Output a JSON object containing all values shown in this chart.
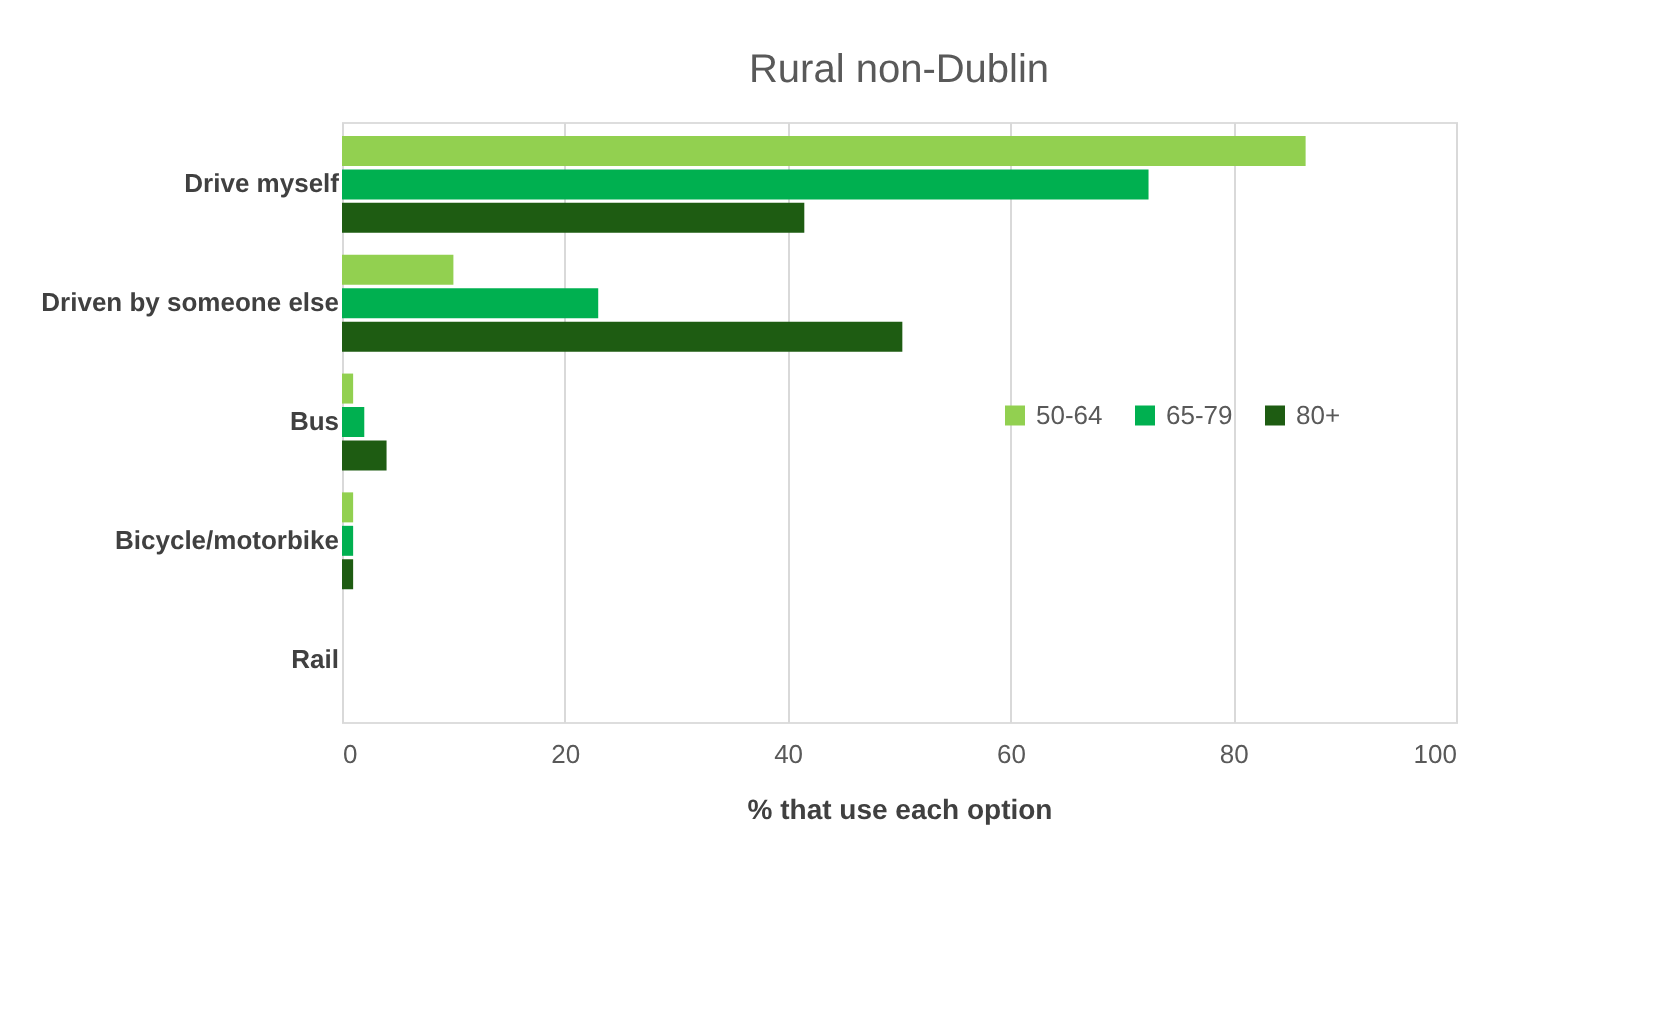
{
  "chart_data": {
    "type": "bar",
    "orientation": "horizontal",
    "title": "Rural non-Dublin",
    "xlabel": "% that use each option",
    "categories": [
      "Drive myself",
      "Driven by someone else",
      "Bus",
      "Bicycle/motorbike",
      "Rail"
    ],
    "series": [
      {
        "name": "50-64",
        "color": "#92d050",
        "values": [
          86.5,
          10,
          1,
          1,
          0
        ]
      },
      {
        "name": "65-79",
        "color": "#00b050",
        "values": [
          72.4,
          23,
          2,
          1,
          0
        ]
      },
      {
        "name": "80+",
        "color": "#1e5c12",
        "values": [
          41.5,
          50.3,
          4,
          1,
          0
        ]
      }
    ],
    "xlim": [
      0,
      100
    ],
    "xticks": [
      0,
      20,
      40,
      60,
      80,
      100
    ],
    "grid": "x",
    "legend": "right"
  }
}
